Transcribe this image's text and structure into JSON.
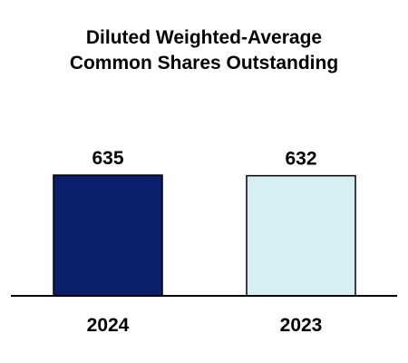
{
  "chart_data": {
    "type": "bar",
    "title": [
      "Diluted Weighted-Average",
      "Common Shares Outstanding"
    ],
    "categories": [
      "2024",
      "2023"
    ],
    "values": [
      635,
      632
    ],
    "colors": [
      "#0a1f6b",
      "#d6eff2"
    ],
    "outline_color": "#000000",
    "xlabel": "",
    "ylabel": "",
    "grid": false,
    "legend": "none"
  }
}
